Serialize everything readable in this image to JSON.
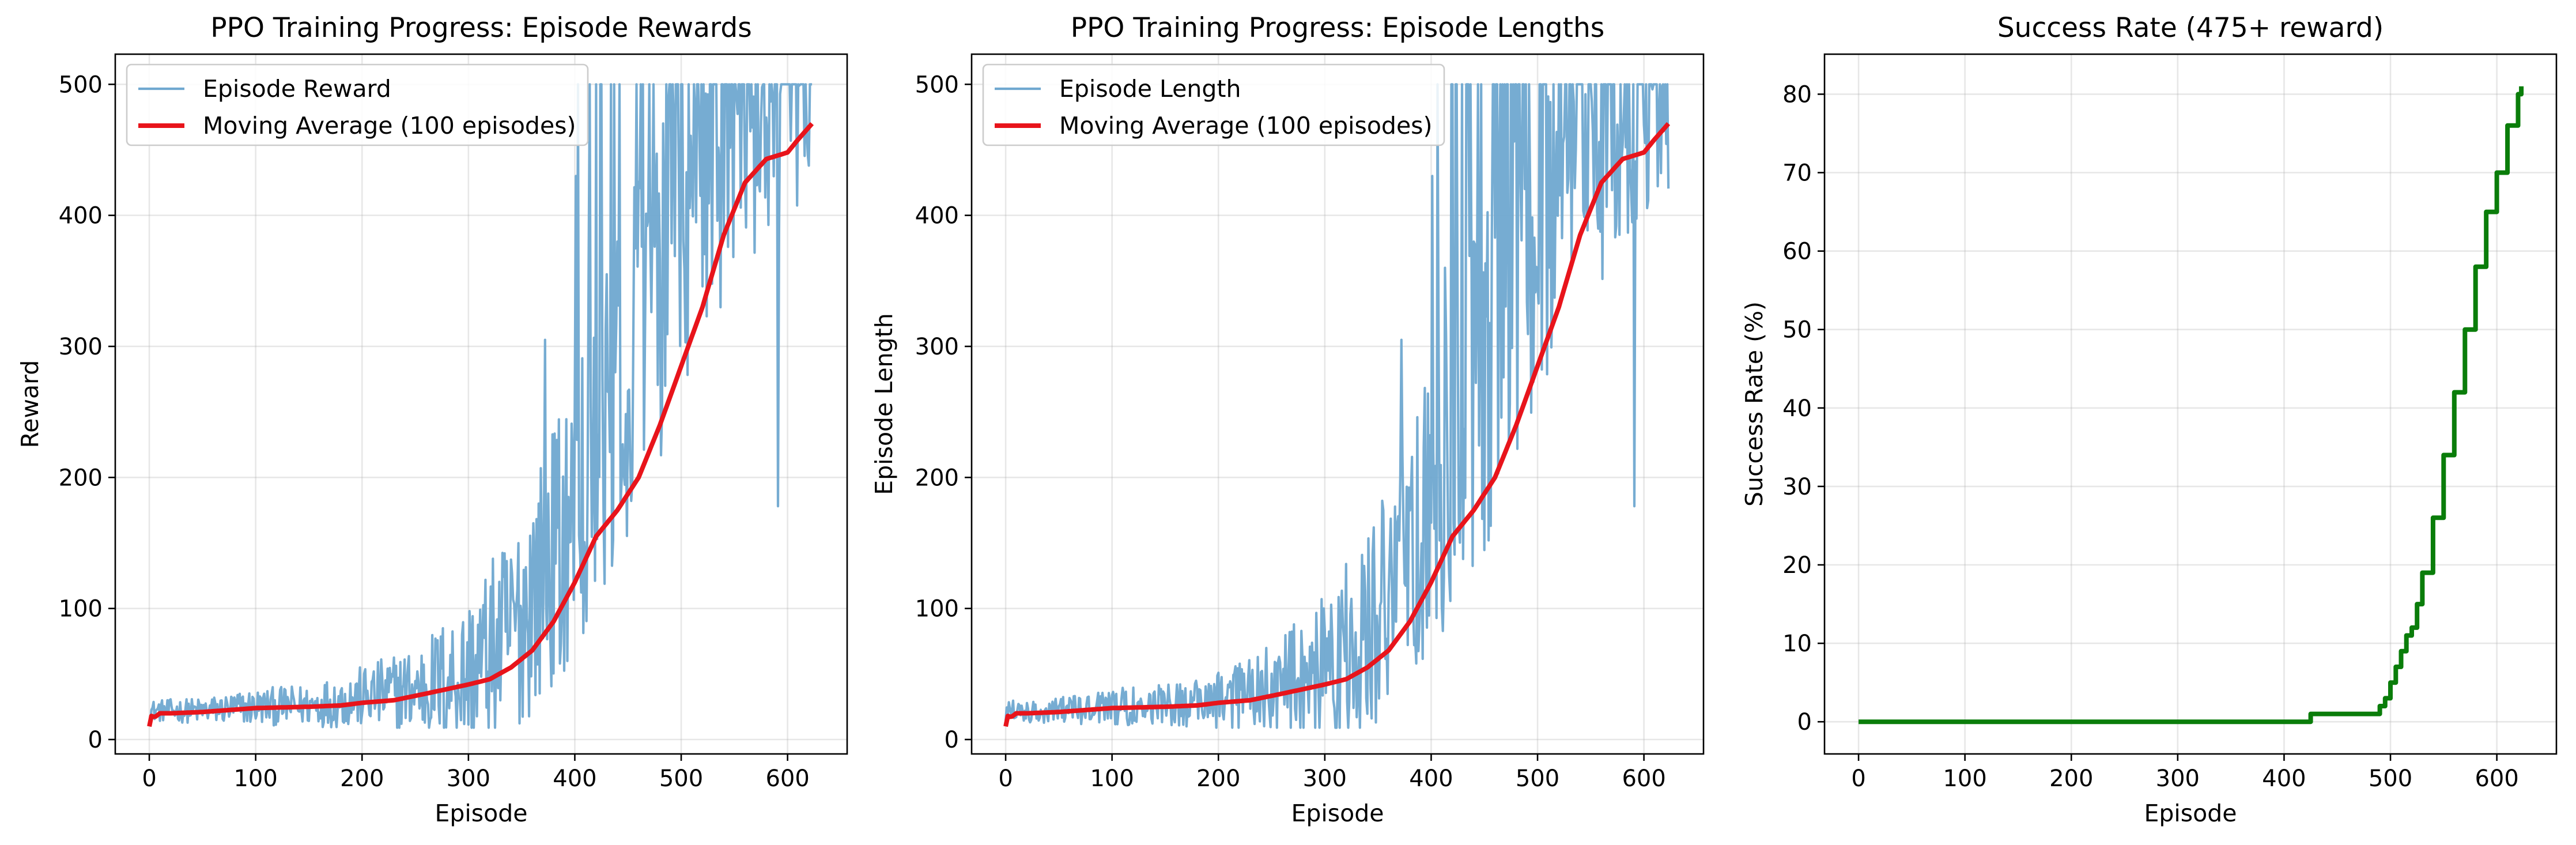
{
  "chart_data": [
    {
      "type": "line",
      "title": "PPO Training Progress: Episode Rewards",
      "xlabel": "Episode",
      "ylabel": "Reward",
      "xlim": [
        -32,
        656
      ],
      "ylim": [
        -11,
        523
      ],
      "xticks": [
        0,
        100,
        200,
        300,
        400,
        500,
        600
      ],
      "yticks": [
        0,
        100,
        200,
        300,
        400,
        500
      ],
      "grid": true,
      "legend_position": "top-left",
      "series": [
        {
          "name": "Episode Reward",
          "color": "#6fa8d0",
          "style": "noisy",
          "x": [
            0,
            50,
            100,
            150,
            200,
            250,
            300,
            340,
            380,
            400,
            420,
            440,
            460,
            480,
            500,
            520,
            540,
            560,
            580,
            600,
            623
          ],
          "values": [
            22,
            22,
            25,
            26,
            32,
            38,
            50,
            80,
            140,
            175,
            215,
            250,
            300,
            340,
            400,
            430,
            450,
            460,
            470,
            480,
            470
          ],
          "spread": [
            8,
            10,
            14,
            16,
            24,
            34,
            60,
            80,
            100,
            110,
            120,
            130,
            140,
            140,
            140,
            130,
            120,
            110,
            100,
            80,
            60
          ],
          "spikes": [
            [
              424,
              500
            ],
            [
              401,
              430
            ],
            [
              440,
              380
            ],
            [
              413,
              360
            ],
            [
              372,
              305
            ],
            [
              591,
              178
            ],
            [
              615,
              500
            ],
            [
              386,
              58
            ]
          ],
          "cap": 500
        },
        {
          "name": "Moving Average (100 episodes)",
          "color": "#e8141b",
          "style": "smooth",
          "x": [
            0,
            2,
            5,
            10,
            20,
            50,
            100,
            150,
            180,
            200,
            230,
            260,
            300,
            320,
            340,
            360,
            380,
            400,
            420,
            440,
            460,
            480,
            500,
            520,
            540,
            560,
            580,
            600,
            610,
            623
          ],
          "values": [
            10,
            18,
            17,
            20,
            20,
            21,
            24,
            25,
            26,
            28,
            30,
            35,
            42,
            46,
            55,
            68,
            90,
            120,
            155,
            175,
            200,
            240,
            285,
            330,
            385,
            425,
            443,
            448,
            458,
            470
          ]
        }
      ]
    },
    {
      "type": "line",
      "title": "PPO Training Progress: Episode Lengths",
      "xlabel": "Episode",
      "ylabel": "Episode Length",
      "xlim": [
        -32,
        656
      ],
      "ylim": [
        -11,
        523
      ],
      "xticks": [
        0,
        100,
        200,
        300,
        400,
        500,
        600
      ],
      "yticks": [
        0,
        100,
        200,
        300,
        400,
        500
      ],
      "grid": true,
      "legend_position": "top-left",
      "series": [
        {
          "name": "Episode Length",
          "color": "#6fa8d0",
          "style": "noisy",
          "x": [
            0,
            50,
            100,
            150,
            200,
            250,
            300,
            340,
            380,
            400,
            420,
            440,
            460,
            480,
            500,
            520,
            540,
            560,
            580,
            600,
            623
          ],
          "values": [
            22,
            22,
            25,
            26,
            32,
            38,
            50,
            80,
            140,
            175,
            215,
            250,
            300,
            340,
            400,
            430,
            450,
            460,
            470,
            480,
            470
          ],
          "spread": [
            8,
            10,
            14,
            16,
            24,
            34,
            60,
            80,
            100,
            110,
            120,
            130,
            140,
            140,
            140,
            130,
            120,
            110,
            100,
            80,
            60
          ],
          "spikes": [
            [
              424,
              500
            ],
            [
              401,
              430
            ],
            [
              440,
              380
            ],
            [
              413,
              360
            ],
            [
              372,
              305
            ],
            [
              591,
              178
            ],
            [
              615,
              500
            ],
            [
              386,
              58
            ]
          ],
          "cap": 500
        },
        {
          "name": "Moving Average (100 episodes)",
          "color": "#e8141b",
          "style": "smooth",
          "x": [
            0,
            2,
            5,
            10,
            20,
            50,
            100,
            150,
            180,
            200,
            230,
            260,
            300,
            320,
            340,
            360,
            380,
            400,
            420,
            440,
            460,
            480,
            500,
            520,
            540,
            560,
            580,
            600,
            610,
            623
          ],
          "values": [
            10,
            18,
            17,
            20,
            20,
            21,
            24,
            25,
            26,
            28,
            30,
            35,
            42,
            46,
            55,
            68,
            90,
            120,
            155,
            175,
            200,
            240,
            285,
            330,
            385,
            425,
            443,
            448,
            458,
            470
          ]
        }
      ]
    },
    {
      "type": "line",
      "title": "Success Rate (475+ reward)",
      "xlabel": "Episode",
      "ylabel": "Success Rate (%)",
      "xlim": [
        -32,
        656
      ],
      "ylim": [
        -4.1,
        85.1
      ],
      "xticks": [
        0,
        100,
        200,
        300,
        400,
        500,
        600
      ],
      "yticks": [
        0,
        10,
        20,
        30,
        40,
        50,
        60,
        70,
        80
      ],
      "grid": true,
      "series": [
        {
          "color": "#0a7d0a",
          "style": "step",
          "x": [
            0,
            424,
            425,
            488,
            490,
            495,
            500,
            505,
            510,
            515,
            520,
            525,
            530,
            540,
            550,
            560,
            570,
            580,
            590,
            600,
            610,
            620,
            623
          ],
          "values": [
            0,
            0,
            1,
            1,
            2,
            3,
            5,
            7,
            9,
            11,
            12,
            15,
            19,
            26,
            34,
            42,
            50,
            58,
            65,
            70,
            76,
            80,
            81
          ]
        }
      ]
    }
  ]
}
